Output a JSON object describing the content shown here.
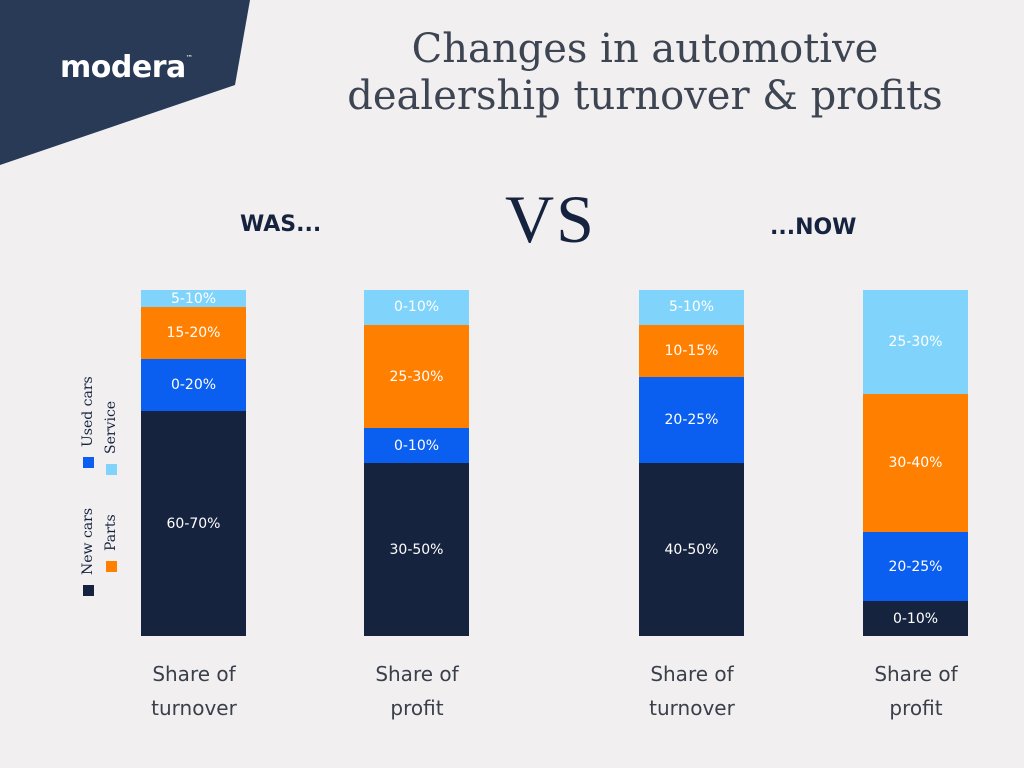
{
  "brand": {
    "logo": "modera",
    "tm": "™"
  },
  "title": "Changes in automotive dealership turnover & profits",
  "headers": {
    "was": "WAS...",
    "vs": "VS",
    "now": "...NOW"
  },
  "chart_data": {
    "type": "stacked-bar",
    "title": "Changes in automotive dealership turnover & profits",
    "categories": [
      "Share of turnover",
      "Share of profit",
      "Share of turnover",
      "Share of profit"
    ],
    "groups": [
      "WAS...",
      "WAS...",
      "...NOW",
      "...NOW"
    ],
    "colors": {
      "New cars": "#16233f",
      "Used cars": "#0a5ef0",
      "Parts": "#ff7f00",
      "Service": "#80d4fb"
    },
    "legend": [
      "New cars",
      "Used cars",
      "Parts",
      "Service"
    ],
    "legend_position": "left",
    "series": [
      {
        "name": "New cars",
        "labels": [
          "60-70%",
          "30-50%",
          "40-50%",
          "0-10%"
        ],
        "values": [
          65,
          50,
          50,
          10
        ]
      },
      {
        "name": "Used cars",
        "labels": [
          "0-20%",
          "0-10%",
          "20-25%",
          "20-25%"
        ],
        "values": [
          15,
          10,
          25,
          20
        ]
      },
      {
        "name": "Parts",
        "labels": [
          "15-20%",
          "25-30%",
          "10-15%",
          "30-40%"
        ],
        "values": [
          15,
          30,
          15,
          40
        ]
      },
      {
        "name": "Service",
        "labels": [
          "5-10%",
          "0-10%",
          "5-10%",
          "25-30%"
        ],
        "values": [
          5,
          10,
          10,
          30
        ]
      }
    ]
  }
}
